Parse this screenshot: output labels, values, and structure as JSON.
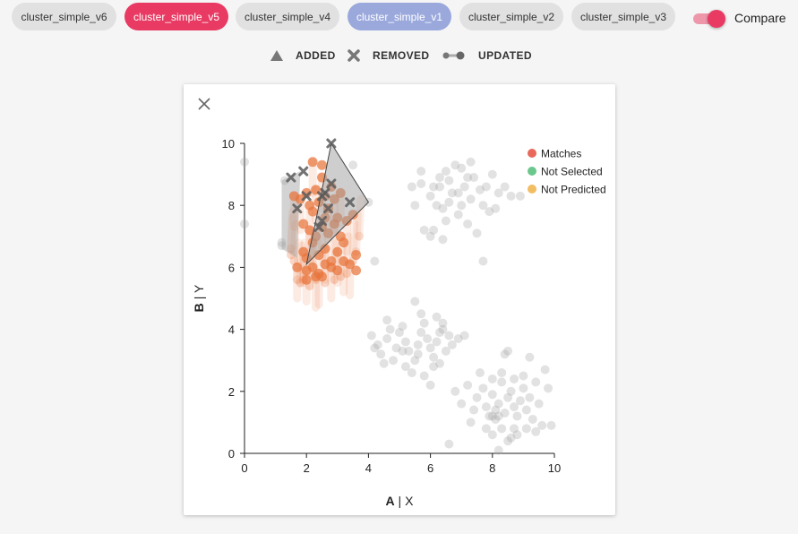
{
  "tabs": [
    {
      "label": "cluster_simple_v6",
      "state": "default"
    },
    {
      "label": "cluster_simple_v5",
      "state": "active-red"
    },
    {
      "label": "cluster_simple_v4",
      "state": "default"
    },
    {
      "label": "cluster_simple_v1",
      "state": "active-blue"
    },
    {
      "label": "cluster_simple_v2",
      "state": "default"
    },
    {
      "label": "cluster_simple_v3",
      "state": "default"
    }
  ],
  "compare": {
    "label": "Compare",
    "on": true
  },
  "diff_legend": {
    "added": "ADDED",
    "removed": "REMOVED",
    "updated": "UPDATED"
  },
  "colors": {
    "accent_red": "#e83a62",
    "accent_blue": "#9aa8dc",
    "tab_bg": "#e1e1e1",
    "matches": "#e8695a",
    "not_selected": "#6cc78c",
    "not_predicted": "#f2bd63",
    "orange_point": "#e8743b",
    "gray_point": "#9e9e9e",
    "dark_mark": "#5a5a5a"
  },
  "chart_data": {
    "type": "scatter",
    "xlabel_bold": "A",
    "xlabel_rest": " | X",
    "ylabel_bold": "B",
    "ylabel_rest": " | Y",
    "xlim": [
      0,
      10
    ],
    "ylim": [
      0,
      10
    ],
    "xticks": [
      "0",
      "2",
      "4",
      "6",
      "8",
      "10"
    ],
    "yticks": [
      "0",
      "2",
      "4",
      "6",
      "8",
      "10"
    ],
    "legend": [
      {
        "label": "Matches",
        "color_key": "matches"
      },
      {
        "label": "Not Selected",
        "color_key": "not_selected"
      },
      {
        "label": "Not Predicted",
        "color_key": "not_predicted"
      }
    ],
    "cluster_upper_right": [
      [
        5.4,
        8.6
      ],
      [
        5.7,
        8.7
      ],
      [
        6.0,
        8.3
      ],
      [
        6.1,
        8.6
      ],
      [
        6.3,
        8.9
      ],
      [
        6.5,
        9.1
      ],
      [
        6.6,
        8.8
      ],
      [
        6.8,
        9.3
      ],
      [
        6.2,
        8.0
      ],
      [
        6.4,
        7.9
      ],
      [
        6.6,
        8.1
      ],
      [
        6.9,
        8.4
      ],
      [
        7.0,
        8.0
      ],
      [
        7.1,
        8.6
      ],
      [
        7.3,
        8.2
      ],
      [
        7.4,
        8.9
      ],
      [
        7.6,
        8.5
      ],
      [
        7.7,
        8.0
      ],
      [
        7.8,
        8.6
      ],
      [
        8.0,
        9.0
      ],
      [
        8.2,
        8.4
      ],
      [
        8.4,
        8.6
      ],
      [
        8.6,
        8.3
      ],
      [
        6.1,
        7.2
      ],
      [
        6.5,
        7.5
      ],
      [
        6.9,
        7.7
      ],
      [
        7.2,
        7.4
      ],
      [
        7.5,
        7.1
      ],
      [
        7.9,
        7.8
      ],
      [
        8.1,
        7.9
      ],
      [
        5.8,
        7.2
      ],
      [
        6.0,
        7.0
      ],
      [
        6.4,
        6.9
      ],
      [
        7.3,
        9.4
      ],
      [
        7.0,
        9.2
      ],
      [
        5.7,
        9.1
      ],
      [
        8.9,
        8.3
      ],
      [
        7.7,
        6.2
      ],
      [
        4.2,
        6.2
      ],
      [
        5.5,
        8.0
      ],
      [
        6.7,
        8.4
      ],
      [
        7.2,
        8.9
      ],
      [
        6.3,
        8.6
      ]
    ],
    "cluster_middle": [
      [
        4.1,
        3.8
      ],
      [
        4.3,
        3.5
      ],
      [
        4.4,
        3.2
      ],
      [
        4.6,
        3.7
      ],
      [
        4.7,
        4.0
      ],
      [
        4.9,
        3.4
      ],
      [
        5.0,
        3.9
      ],
      [
        5.1,
        4.1
      ],
      [
        5.2,
        3.6
      ],
      [
        5.3,
        3.3
      ],
      [
        5.5,
        3.0
      ],
      [
        5.6,
        3.5
      ],
      [
        5.7,
        3.9
      ],
      [
        5.8,
        4.2
      ],
      [
        5.9,
        3.7
      ],
      [
        6.0,
        3.4
      ],
      [
        6.1,
        3.1
      ],
      [
        6.2,
        3.6
      ],
      [
        6.3,
        3.9
      ],
      [
        6.4,
        4.0
      ],
      [
        6.5,
        3.3
      ],
      [
        6.6,
        3.8
      ],
      [
        6.7,
        3.5
      ],
      [
        6.9,
        3.7
      ],
      [
        7.1,
        3.8
      ],
      [
        4.5,
        2.9
      ],
      [
        4.8,
        3.0
      ],
      [
        5.2,
        2.8
      ],
      [
        5.4,
        2.6
      ],
      [
        5.8,
        2.5
      ],
      [
        6.0,
        2.2
      ],
      [
        6.3,
        2.9
      ],
      [
        5.5,
        4.9
      ],
      [
        5.7,
        4.5
      ],
      [
        6.2,
        4.4
      ],
      [
        6.4,
        4.2
      ],
      [
        4.2,
        3.4
      ],
      [
        5.6,
        3.2
      ],
      [
        6.1,
        2.8
      ],
      [
        4.6,
        4.3
      ],
      [
        5.1,
        3.3
      ]
    ],
    "cluster_lower_right": [
      [
        6.8,
        2.0
      ],
      [
        7.0,
        1.6
      ],
      [
        7.2,
        2.2
      ],
      [
        7.4,
        1.4
      ],
      [
        7.5,
        1.8
      ],
      [
        7.7,
        2.1
      ],
      [
        7.8,
        1.5
      ],
      [
        7.9,
        1.2
      ],
      [
        8.0,
        1.9
      ],
      [
        8.1,
        1.1
      ],
      [
        8.2,
        1.6
      ],
      [
        8.3,
        2.3
      ],
      [
        8.4,
        1.3
      ],
      [
        8.5,
        1.8
      ],
      [
        8.6,
        2.0
      ],
      [
        8.7,
        1.5
      ],
      [
        8.8,
        1.2
      ],
      [
        8.9,
        1.7
      ],
      [
        9.0,
        2.1
      ],
      [
        9.1,
        1.4
      ],
      [
        9.2,
        1.8
      ],
      [
        9.3,
        1.1
      ],
      [
        9.5,
        1.6
      ],
      [
        9.6,
        0.9
      ],
      [
        9.8,
        2.1
      ],
      [
        7.6,
        2.6
      ],
      [
        8.0,
        2.4
      ],
      [
        8.3,
        2.6
      ],
      [
        8.7,
        2.4
      ],
      [
        9.0,
        2.5
      ],
      [
        9.4,
        2.3
      ],
      [
        8.4,
        3.2
      ],
      [
        8.5,
        3.3
      ],
      [
        9.2,
        3.1
      ],
      [
        9.7,
        2.7
      ],
      [
        7.3,
        1.0
      ],
      [
        7.8,
        0.8
      ],
      [
        8.0,
        0.6
      ],
      [
        8.3,
        0.8
      ],
      [
        8.5,
        0.4
      ],
      [
        8.7,
        0.8
      ],
      [
        8.8,
        0.6
      ],
      [
        9.1,
        0.8
      ],
      [
        9.4,
        0.7
      ],
      [
        9.9,
        0.9
      ],
      [
        6.6,
        0.3
      ],
      [
        8.2,
        0.1
      ],
      [
        8.6,
        0.5
      ],
      [
        8.1,
        1.4
      ],
      [
        8.0,
        1.2
      ],
      [
        8.2,
        1.2
      ]
    ],
    "orange_points": [
      [
        1.8,
        8.2
      ],
      [
        2.0,
        8.4
      ],
      [
        2.1,
        8.0
      ],
      [
        2.2,
        7.8
      ],
      [
        2.3,
        8.5
      ],
      [
        2.4,
        8.1
      ],
      [
        2.5,
        8.9
      ],
      [
        2.6,
        8.3
      ],
      [
        2.7,
        7.9
      ],
      [
        2.8,
        8.6
      ],
      [
        2.9,
        8.2
      ],
      [
        3.0,
        7.6
      ],
      [
        3.1,
        8.4
      ],
      [
        1.9,
        7.4
      ],
      [
        2.1,
        7.2
      ],
      [
        2.3,
        7.0
      ],
      [
        2.5,
        7.3
      ],
      [
        2.7,
        7.1
      ],
      [
        2.9,
        7.4
      ],
      [
        3.1,
        7.0
      ],
      [
        3.3,
        7.5
      ],
      [
        3.5,
        7.7
      ],
      [
        1.9,
        6.5
      ],
      [
        2.0,
        6.3
      ],
      [
        2.2,
        6.8
      ],
      [
        2.4,
        6.4
      ],
      [
        2.6,
        6.6
      ],
      [
        2.8,
        6.2
      ],
      [
        3.0,
        6.5
      ],
      [
        3.2,
        6.8
      ],
      [
        3.4,
        6.1
      ],
      [
        3.6,
        6.4
      ],
      [
        2.0,
        5.9
      ],
      [
        2.2,
        6.0
      ],
      [
        2.4,
        5.8
      ],
      [
        2.6,
        6.1
      ],
      [
        2.8,
        6.0
      ],
      [
        3.0,
        5.9
      ],
      [
        3.2,
        6.2
      ],
      [
        3.6,
        5.9
      ],
      [
        1.7,
        6.0
      ],
      [
        2.0,
        5.6
      ],
      [
        2.3,
        5.7
      ],
      [
        2.5,
        5.7
      ],
      [
        2.2,
        9.4
      ],
      [
        2.5,
        9.3
      ],
      [
        1.6,
        8.3
      ],
      [
        2.6,
        7.6
      ]
    ],
    "faint_trail_points": [
      [
        1.5,
        6.4
      ],
      [
        1.5,
        6.6
      ],
      [
        1.8,
        5.5
      ],
      [
        1.9,
        5.6
      ],
      [
        1.6,
        6.2
      ],
      [
        2.1,
        5.4
      ],
      [
        2.3,
        5.6
      ],
      [
        2.6,
        5.5
      ],
      [
        2.9,
        5.6
      ],
      [
        3.1,
        5.7
      ],
      [
        3.3,
        5.8
      ],
      [
        3.5,
        6.2
      ],
      [
        3.6,
        6.5
      ],
      [
        3.7,
        7.0
      ],
      [
        1.7,
        5.6
      ]
    ],
    "removed_points": [
      [
        1.5,
        8.9
      ],
      [
        1.9,
        9.1
      ],
      [
        2.0,
        8.3
      ],
      [
        1.7,
        7.9
      ],
      [
        2.5,
        8.3
      ],
      [
        2.6,
        8.4
      ],
      [
        2.8,
        8.7
      ],
      [
        2.7,
        7.9
      ],
      [
        3.4,
        8.1
      ],
      [
        2.5,
        7.5
      ],
      [
        2.4,
        7.3
      ],
      [
        2.8,
        10.0
      ]
    ],
    "gray_left_points": [
      [
        0.0,
        9.4
      ],
      [
        0.0,
        7.4
      ],
      [
        1.2,
        6.8
      ],
      [
        1.2,
        6.7
      ],
      [
        1.3,
        8.8
      ],
      [
        4.0,
        8.1
      ],
      [
        3.5,
        9.3
      ]
    ],
    "hull_left": [
      [
        1.2,
        8.8
      ],
      [
        1.8,
        9.1
      ],
      [
        1.7,
        6.3
      ],
      [
        1.2,
        6.6
      ]
    ],
    "hull_main": [
      [
        2.8,
        10.0
      ],
      [
        4.0,
        8.1
      ],
      [
        2.0,
        6.1
      ],
      [
        2.3,
        7.5
      ]
    ]
  }
}
